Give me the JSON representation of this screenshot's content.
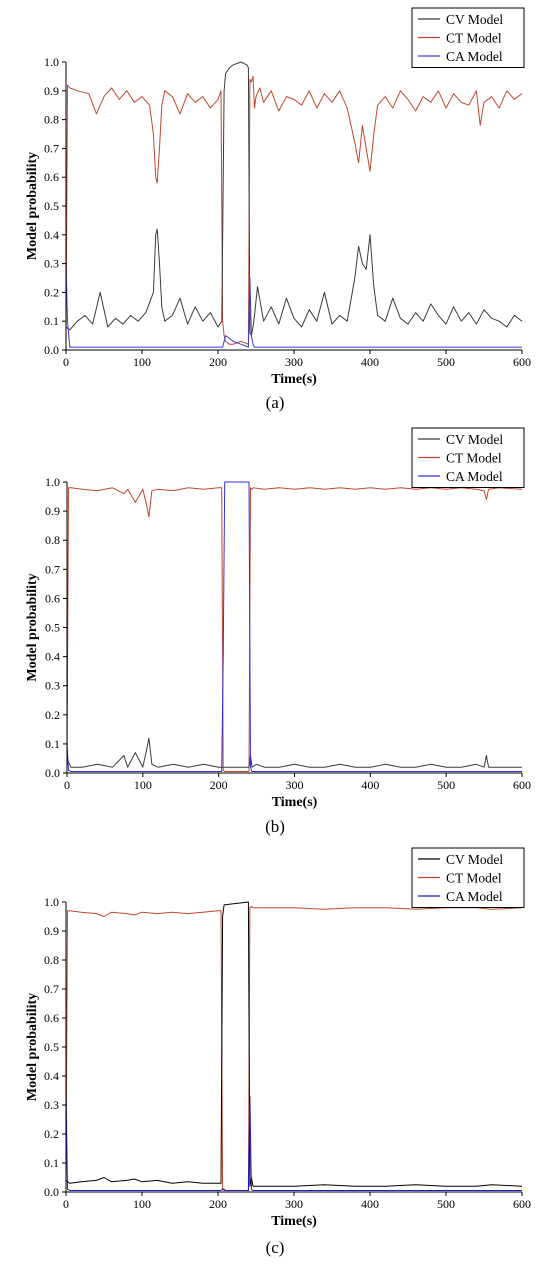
{
  "chart_data": [
    {
      "type": "line",
      "panel_label": "(a)",
      "xlabel": "Time(s)",
      "ylabel": "Model probability",
      "xlim": [
        0,
        600
      ],
      "ylim": [
        0,
        1.0
      ],
      "x_ticks": [
        0,
        100,
        200,
        300,
        400,
        500,
        600
      ],
      "y_ticks": [
        0.0,
        0.1,
        0.2,
        0.3,
        0.4,
        0.5,
        0.6,
        0.7,
        0.8,
        0.9,
        1.0
      ],
      "legend_position": "top-right",
      "colors": {
        "CV Model": "#3a3a3a",
        "CT Model": "#c0472e",
        "CA Model": "#3b3bd6"
      },
      "series": [
        {
          "name": "CT Model",
          "color": "#c0472e",
          "x": [
            0,
            2,
            5,
            15,
            30,
            40,
            50,
            60,
            70,
            80,
            90,
            100,
            110,
            115,
            118,
            120,
            123,
            126,
            130,
            140,
            150,
            160,
            170,
            180,
            190,
            200,
            204,
            206,
            208,
            210,
            215,
            220,
            230,
            240,
            242,
            244,
            246,
            248,
            250,
            255,
            260,
            270,
            280,
            290,
            300,
            310,
            320,
            330,
            340,
            350,
            360,
            370,
            380,
            385,
            390,
            395,
            400,
            405,
            410,
            420,
            430,
            440,
            450,
            460,
            470,
            480,
            490,
            500,
            510,
            520,
            530,
            540,
            545,
            550,
            560,
            570,
            580,
            590,
            600
          ],
          "y": [
            0.05,
            0.92,
            0.91,
            0.9,
            0.89,
            0.82,
            0.88,
            0.91,
            0.87,
            0.9,
            0.86,
            0.88,
            0.85,
            0.75,
            0.6,
            0.58,
            0.7,
            0.85,
            0.9,
            0.88,
            0.82,
            0.89,
            0.86,
            0.88,
            0.84,
            0.87,
            0.9,
            0.1,
            0.05,
            0.03,
            0.02,
            0.02,
            0.03,
            0.02,
            0.94,
            0.93,
            0.95,
            0.84,
            0.88,
            0.91,
            0.86,
            0.9,
            0.83,
            0.88,
            0.87,
            0.85,
            0.9,
            0.84,
            0.89,
            0.86,
            0.9,
            0.84,
            0.72,
            0.65,
            0.78,
            0.7,
            0.62,
            0.75,
            0.85,
            0.88,
            0.84,
            0.9,
            0.87,
            0.83,
            0.88,
            0.86,
            0.9,
            0.84,
            0.89,
            0.86,
            0.85,
            0.9,
            0.78,
            0.86,
            0.88,
            0.84,
            0.9,
            0.87,
            0.89
          ]
        },
        {
          "name": "CV Model",
          "color": "#3a3a3a",
          "x": [
            0,
            5,
            15,
            25,
            35,
            45,
            55,
            65,
            75,
            85,
            95,
            105,
            115,
            118,
            120,
            123,
            126,
            130,
            140,
            150,
            160,
            170,
            180,
            190,
            200,
            205,
            208,
            210,
            215,
            220,
            230,
            238,
            240,
            242,
            244,
            246,
            248,
            252,
            260,
            270,
            280,
            290,
            300,
            310,
            320,
            330,
            340,
            350,
            360,
            370,
            380,
            385,
            390,
            395,
            400,
            405,
            410,
            420,
            430,
            440,
            450,
            460,
            470,
            480,
            490,
            500,
            510,
            520,
            530,
            540,
            550,
            560,
            570,
            580,
            590,
            600
          ],
          "y": [
            0.08,
            0.07,
            0.1,
            0.12,
            0.09,
            0.2,
            0.08,
            0.11,
            0.09,
            0.12,
            0.1,
            0.13,
            0.2,
            0.4,
            0.42,
            0.3,
            0.15,
            0.1,
            0.12,
            0.18,
            0.09,
            0.15,
            0.1,
            0.13,
            0.08,
            0.1,
            0.9,
            0.96,
            0.98,
            0.99,
            1.0,
            0.99,
            0.98,
            0.06,
            0.05,
            0.08,
            0.12,
            0.22,
            0.1,
            0.15,
            0.09,
            0.18,
            0.11,
            0.08,
            0.14,
            0.1,
            0.2,
            0.09,
            0.12,
            0.1,
            0.25,
            0.36,
            0.3,
            0.28,
            0.4,
            0.22,
            0.12,
            0.1,
            0.18,
            0.11,
            0.09,
            0.13,
            0.1,
            0.16,
            0.12,
            0.09,
            0.15,
            0.1,
            0.13,
            0.09,
            0.14,
            0.11,
            0.1,
            0.08,
            0.12,
            0.1
          ]
        },
        {
          "name": "CA Model",
          "color": "#3b3bd6",
          "x": [
            0,
            2,
            5,
            200,
            206,
            208,
            210,
            220,
            230,
            240,
            242,
            244,
            246,
            248,
            252,
            260,
            600
          ],
          "y": [
            0.3,
            0.1,
            0.01,
            0.01,
            0.01,
            0.03,
            0.05,
            0.03,
            0.02,
            0.01,
            0.25,
            0.05,
            0.02,
            0.01,
            0.01,
            0.01,
            0.01
          ]
        }
      ],
      "legend": [
        "CV Model",
        "CT Model",
        "CA Model"
      ]
    },
    {
      "type": "line",
      "panel_label": "(b)",
      "xlabel": "Time(s)",
      "ylabel": "Model probability",
      "xlim": [
        0,
        600
      ],
      "ylim": [
        0,
        1.0
      ],
      "x_ticks": [
        0,
        100,
        200,
        300,
        400,
        500,
        600
      ],
      "y_ticks": [
        0.0,
        0.1,
        0.2,
        0.3,
        0.4,
        0.5,
        0.6,
        0.7,
        0.8,
        0.9,
        1.0
      ],
      "legend_position": "top-right",
      "colors": {
        "CV Model": "#3a3a3a",
        "CT Model": "#c0472e",
        "CA Model": "#2f2fe0"
      },
      "series": [
        {
          "name": "CT Model",
          "color": "#c0472e",
          "x": [
            0,
            2,
            5,
            20,
            40,
            60,
            75,
            80,
            90,
            100,
            105,
            108,
            112,
            120,
            140,
            160,
            180,
            200,
            204,
            206,
            208,
            240,
            242,
            244,
            246,
            260,
            280,
            300,
            320,
            340,
            360,
            380,
            400,
            420,
            440,
            460,
            480,
            500,
            520,
            540,
            550,
            553,
            556,
            570,
            600
          ],
          "y": [
            0.02,
            0.98,
            0.98,
            0.975,
            0.97,
            0.98,
            0.96,
            0.975,
            0.93,
            0.975,
            0.92,
            0.88,
            0.97,
            0.975,
            0.97,
            0.98,
            0.975,
            0.98,
            0.98,
            0.01,
            0.005,
            0.005,
            0.98,
            0.975,
            0.98,
            0.975,
            0.98,
            0.975,
            0.98,
            0.975,
            0.98,
            0.975,
            0.98,
            0.975,
            0.98,
            0.975,
            0.98,
            0.975,
            0.98,
            0.975,
            0.97,
            0.94,
            0.975,
            0.98,
            0.975
          ]
        },
        {
          "name": "CV Model",
          "color": "#3a3a3a",
          "x": [
            0,
            5,
            20,
            40,
            60,
            75,
            80,
            90,
            100,
            105,
            108,
            112,
            120,
            140,
            160,
            180,
            200,
            205,
            208,
            240,
            242,
            244,
            250,
            260,
            280,
            300,
            320,
            340,
            360,
            380,
            400,
            420,
            440,
            460,
            480,
            500,
            520,
            540,
            550,
            553,
            556,
            570,
            600
          ],
          "y": [
            0.05,
            0.02,
            0.02,
            0.03,
            0.02,
            0.06,
            0.02,
            0.07,
            0.02,
            0.08,
            0.12,
            0.03,
            0.02,
            0.03,
            0.02,
            0.03,
            0.02,
            0.02,
            0.02,
            0.02,
            0.06,
            0.02,
            0.03,
            0.02,
            0.02,
            0.03,
            0.02,
            0.02,
            0.03,
            0.02,
            0.02,
            0.03,
            0.02,
            0.02,
            0.03,
            0.02,
            0.02,
            0.03,
            0.02,
            0.06,
            0.02,
            0.02,
            0.02
          ]
        },
        {
          "name": "CA Model",
          "color": "#2f2fe0",
          "x": [
            0,
            2,
            5,
            204,
            206,
            208,
            210,
            238,
            240,
            242,
            244,
            600
          ],
          "y": [
            0.1,
            0.01,
            0.005,
            0.005,
            0.4,
            1.0,
            1.0,
            1.0,
            1.0,
            0.02,
            0.005,
            0.005
          ]
        }
      ],
      "legend": [
        "CV Model",
        "CT Model",
        "CA Model"
      ]
    },
    {
      "type": "line",
      "panel_label": "(c)",
      "xlabel": "Time(s)",
      "ylabel": "Model probability",
      "xlim": [
        0,
        600
      ],
      "ylim": [
        0,
        1.0
      ],
      "x_ticks": [
        0,
        100,
        200,
        300,
        400,
        500,
        600
      ],
      "y_ticks": [
        0.0,
        0.1,
        0.2,
        0.3,
        0.4,
        0.5,
        0.6,
        0.7,
        0.8,
        0.9,
        1.0
      ],
      "legend_position": "top-right",
      "colors": {
        "CV Model": "#000000",
        "CT Model": "#c0472e",
        "CA Model": "#1a1ac8"
      },
      "series": [
        {
          "name": "CT Model",
          "color": "#c0472e",
          "x": [
            0,
            2,
            5,
            20,
            40,
            50,
            60,
            80,
            90,
            100,
            120,
            140,
            160,
            180,
            200,
            204,
            206,
            208,
            240,
            242,
            244,
            246,
            260,
            300,
            340,
            380,
            420,
            460,
            500,
            540,
            560,
            600
          ],
          "y": [
            0.05,
            0.97,
            0.97,
            0.965,
            0.96,
            0.95,
            0.965,
            0.96,
            0.955,
            0.965,
            0.96,
            0.965,
            0.96,
            0.965,
            0.97,
            0.97,
            0.01,
            0.005,
            0.005,
            0.98,
            0.985,
            0.98,
            0.98,
            0.98,
            0.975,
            0.98,
            0.98,
            0.975,
            0.98,
            0.98,
            0.975,
            0.98
          ]
        },
        {
          "name": "CV Model",
          "color": "#000000",
          "x": [
            0,
            5,
            20,
            40,
            50,
            60,
            80,
            90,
            100,
            120,
            140,
            160,
            180,
            200,
            204,
            206,
            208,
            240,
            242,
            244,
            246,
            260,
            300,
            340,
            380,
            420,
            460,
            500,
            540,
            560,
            600
          ],
          "y": [
            0.04,
            0.03,
            0.035,
            0.04,
            0.05,
            0.035,
            0.04,
            0.045,
            0.035,
            0.04,
            0.03,
            0.035,
            0.03,
            0.03,
            0.03,
            0.95,
            0.99,
            1.0,
            0.02,
            0.05,
            0.02,
            0.02,
            0.02,
            0.025,
            0.02,
            0.02,
            0.025,
            0.02,
            0.02,
            0.025,
            0.02
          ]
        },
        {
          "name": "CA Model",
          "color": "#1a1ac8",
          "x": [
            0,
            2,
            5,
            204,
            206,
            208,
            210,
            240,
            242,
            244,
            246,
            600
          ],
          "y": [
            0.35,
            0.01,
            0.005,
            0.005,
            0.01,
            0.01,
            0.005,
            0.005,
            0.33,
            0.01,
            0.005,
            0.005
          ]
        }
      ],
      "legend": [
        "CV Model",
        "CT Model",
        "CA Model"
      ]
    }
  ]
}
